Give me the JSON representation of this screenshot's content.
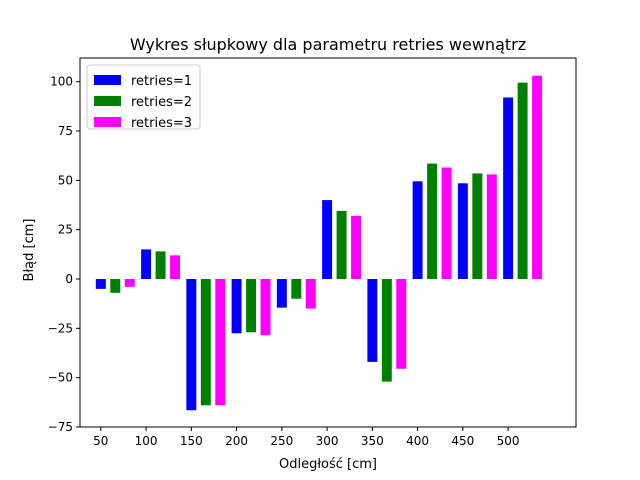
{
  "chart_data": {
    "type": "bar",
    "title": "Wykres słupkowy dla parametru retries wewnątrz",
    "xlabel": "Odległość [cm]",
    "ylabel": "Błąd [cm]",
    "ylim": [
      -75,
      112
    ],
    "xlim": [
      27,
      575
    ],
    "x": [
      50,
      100,
      150,
      200,
      250,
      300,
      350,
      400,
      450,
      500
    ],
    "bar_width": 11,
    "series_offsets": [
      0,
      16,
      32
    ],
    "xticks": [
      50,
      100,
      150,
      200,
      250,
      300,
      350,
      400,
      450,
      500
    ],
    "yticks": [
      -75,
      -50,
      -25,
      0,
      25,
      50,
      75,
      100
    ],
    "grid": false,
    "legend_position": "top-left",
    "series": [
      {
        "name": "retries=1",
        "color": "#0000ff",
        "values": [
          -5,
          15,
          -66.5,
          -27.5,
          -14.5,
          40,
          -42,
          49.5,
          48.5,
          92
        ]
      },
      {
        "name": "retries=2",
        "color": "#008000",
        "values": [
          -7,
          14,
          -64,
          -27,
          -10,
          34.5,
          -52,
          58.5,
          53.5,
          99.5
        ]
      },
      {
        "name": "retries=3",
        "color": "#ff00ff",
        "values": [
          -4,
          12,
          -64,
          -28.5,
          -15,
          32,
          -45.5,
          56.5,
          53,
          103
        ]
      }
    ]
  }
}
